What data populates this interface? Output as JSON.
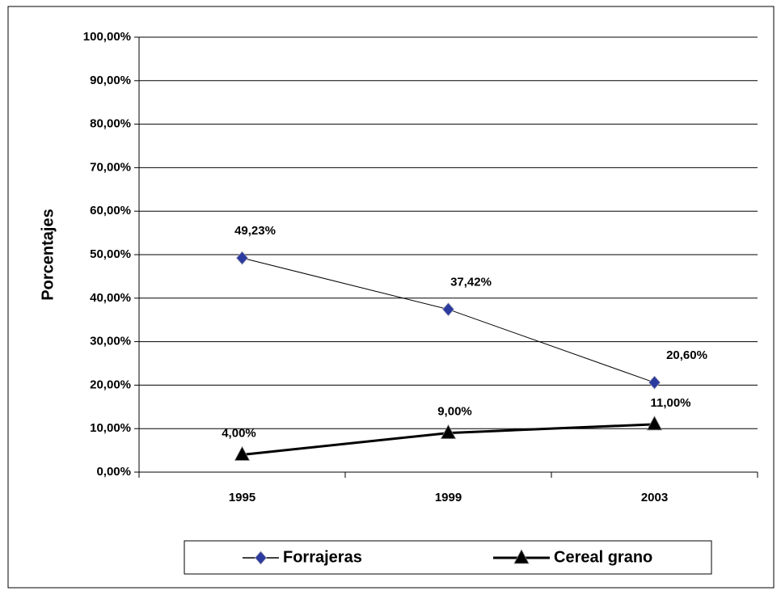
{
  "chart_data": {
    "type": "line",
    "y_label": "Porcentajes",
    "categories": [
      "1995",
      "1999",
      "2003"
    ],
    "series": [
      {
        "name": "Forrajeras",
        "color": "#2b3a9e",
        "marker": "diamond",
        "values": [
          49.23,
          37.42,
          20.6
        ],
        "value_labels": [
          "49,23%",
          "37,42%",
          "20,60%"
        ]
      },
      {
        "name": "Cereal grano",
        "color": "#000000",
        "marker": "triangle",
        "values": [
          4,
          9,
          11
        ],
        "value_labels": [
          "4,00%",
          "9,00%",
          "11,00%"
        ]
      }
    ],
    "ylim": [
      0,
      100
    ],
    "yticks": [
      {
        "value": 0,
        "label": "0,00%"
      },
      {
        "value": 10,
        "label": "10,00%"
      },
      {
        "value": 20,
        "label": "20,00%"
      },
      {
        "value": 30,
        "label": "30,00%"
      },
      {
        "value": 40,
        "label": "40,00%"
      },
      {
        "value": 50,
        "label": "50,00%"
      },
      {
        "value": 60,
        "label": "60,00%"
      },
      {
        "value": 70,
        "label": "70,00%"
      },
      {
        "value": 80,
        "label": "80,00%"
      },
      {
        "value": 90,
        "label": "90,00%"
      },
      {
        "value": 100,
        "label": "100,00%"
      }
    ],
    "grid": true,
    "legend": "bottom"
  }
}
